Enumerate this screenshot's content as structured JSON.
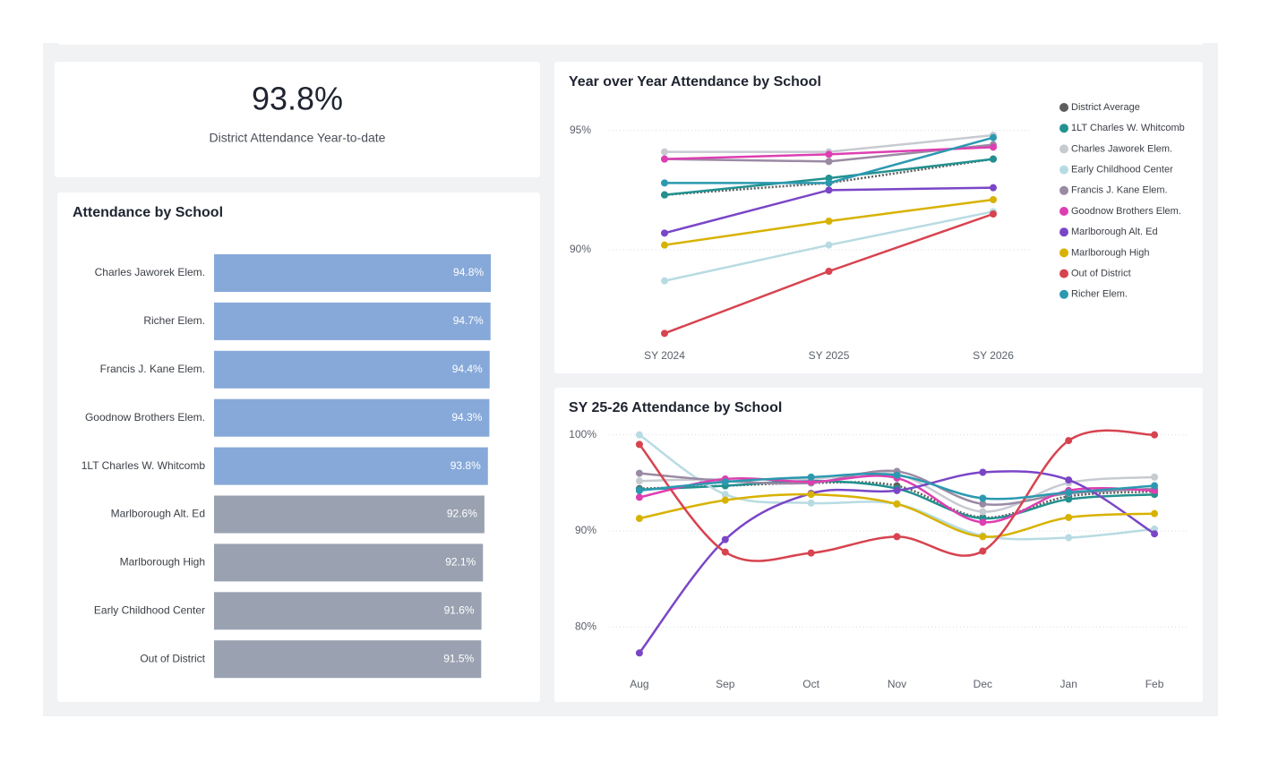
{
  "kpi": {
    "value": "93.8%",
    "label": "District Attendance Year-to-date"
  },
  "chart_data": [
    {
      "type": "bar",
      "orientation": "horizontal",
      "title": "Attendance by School",
      "categories": [
        "Charles Jaworek Elem.",
        "Richer Elem.",
        "Francis J. Kane Elem.",
        "Goodnow Brothers Elem.",
        "1LT Charles W. Whitcomb",
        "Marlborough Alt. Ed",
        "Marlborough High",
        "Early Childhood Center",
        "Out of District"
      ],
      "values": [
        94.8,
        94.7,
        94.4,
        94.3,
        93.8,
        92.6,
        92.1,
        91.6,
        91.5
      ],
      "value_labels": [
        "94.8%",
        "94.7%",
        "94.4%",
        "94.3%",
        "93.8%",
        "92.6%",
        "92.1%",
        "91.6%",
        "91.5%"
      ],
      "colors": [
        "#87a9d9",
        "#87a9d9",
        "#87a9d9",
        "#87a9d9",
        "#87a9d9",
        "#9aa2b1",
        "#9aa2b1",
        "#9aa2b1",
        "#9aa2b1"
      ]
    },
    {
      "type": "line",
      "title": "Year over Year Attendance by School",
      "smooth": false,
      "grid": true,
      "legend": "right",
      "categories": [
        "SY 2024",
        "SY 2025",
        "SY 2026"
      ],
      "ylim": [
        86.4,
        95.4
      ],
      "yticks": [
        {
          "value": 90,
          "label": "90%"
        },
        {
          "value": 95,
          "label": "95%"
        }
      ],
      "series": [
        {
          "name": "District Average",
          "color": "#5e5e5e",
          "dotted": true,
          "values": [
            92.3,
            92.8,
            93.8
          ]
        },
        {
          "name": "1LT Charles W. Whitcomb",
          "color": "#22918f",
          "values": [
            92.3,
            93.0,
            93.8
          ]
        },
        {
          "name": "Charles Jaworek Elem.",
          "color": "#c8cad2",
          "values": [
            94.1,
            94.1,
            94.8
          ]
        },
        {
          "name": "Early Childhood Center",
          "color": "#b8dbe3",
          "values": [
            88.7,
            90.2,
            91.6
          ]
        },
        {
          "name": "Francis J. Kane Elem.",
          "color": "#9a8aa3",
          "values": [
            93.8,
            93.7,
            94.4
          ]
        },
        {
          "name": "Goodnow Brothers Elem.",
          "color": "#dd3fb1",
          "values": [
            93.8,
            94.0,
            94.3
          ]
        },
        {
          "name": "Marlborough Alt. Ed",
          "color": "#7a46c7",
          "values": [
            90.7,
            92.5,
            92.6
          ]
        },
        {
          "name": "Marlborough High",
          "color": "#d8b200",
          "values": [
            90.2,
            91.2,
            92.1
          ]
        },
        {
          "name": "Out of District",
          "color": "#d7434f",
          "values": [
            86.5,
            89.1,
            91.5
          ]
        },
        {
          "name": "Richer Elem.",
          "color": "#2b99b0",
          "values": [
            92.8,
            92.8,
            94.7
          ]
        }
      ]
    },
    {
      "type": "line",
      "title": "SY 25-26 Attendance by School",
      "smooth": true,
      "grid": true,
      "categories": [
        "Aug",
        "Sep",
        "Oct",
        "Nov",
        "Dec",
        "Jan",
        "Feb"
      ],
      "ylim": [
        76.3,
        100.9
      ],
      "yticks": [
        {
          "value": 80,
          "label": "80%"
        },
        {
          "value": 90,
          "label": "90%"
        },
        {
          "value": 100,
          "label": "100%"
        }
      ],
      "series": [
        {
          "name": "District Average",
          "color": "#5e5e5e",
          "dotted": true,
          "values": [
            94.4,
            94.7,
            95.0,
            94.7,
            91.4,
            93.6,
            94.1
          ]
        },
        {
          "name": "1LT Charles W. Whitcomb",
          "color": "#22918f",
          "values": [
            94.3,
            94.7,
            95.2,
            94.4,
            91.3,
            93.3,
            93.8
          ]
        },
        {
          "name": "Charles Jaworek Elem.",
          "color": "#c8cad2",
          "values": [
            95.2,
            95.4,
            95.4,
            95.9,
            92.0,
            95.0,
            95.6
          ]
        },
        {
          "name": "Early Childhood Center",
          "color": "#b8dbe3",
          "values": [
            100.0,
            93.8,
            92.9,
            92.8,
            89.5,
            89.3,
            90.2
          ]
        },
        {
          "name": "Francis J. Kane Elem.",
          "color": "#9a8aa3",
          "values": [
            96.0,
            95.2,
            95.0,
            96.2,
            92.8,
            93.9,
            94.4
          ]
        },
        {
          "name": "Goodnow Brothers Elem.",
          "color": "#dd3fb1",
          "values": [
            93.5,
            95.4,
            95.1,
            95.5,
            90.9,
            94.2,
            94.2
          ]
        },
        {
          "name": "Marlborough Alt. Ed",
          "color": "#7a46c7",
          "values": [
            77.3,
            89.1,
            93.9,
            94.2,
            96.1,
            95.3,
            89.7
          ]
        },
        {
          "name": "Marlborough High",
          "color": "#d8b200",
          "values": [
            91.3,
            93.2,
            93.8,
            92.8,
            89.4,
            91.4,
            91.8
          ]
        },
        {
          "name": "Out of District",
          "color": "#d7434f",
          "values": [
            99.0,
            87.8,
            87.7,
            89.4,
            87.9,
            99.4,
            100.0
          ]
        },
        {
          "name": "Richer Elem.",
          "color": "#2b99b0",
          "values": [
            94.2,
            95.1,
            95.6,
            95.8,
            93.4,
            94.0,
            94.7
          ]
        }
      ]
    }
  ]
}
